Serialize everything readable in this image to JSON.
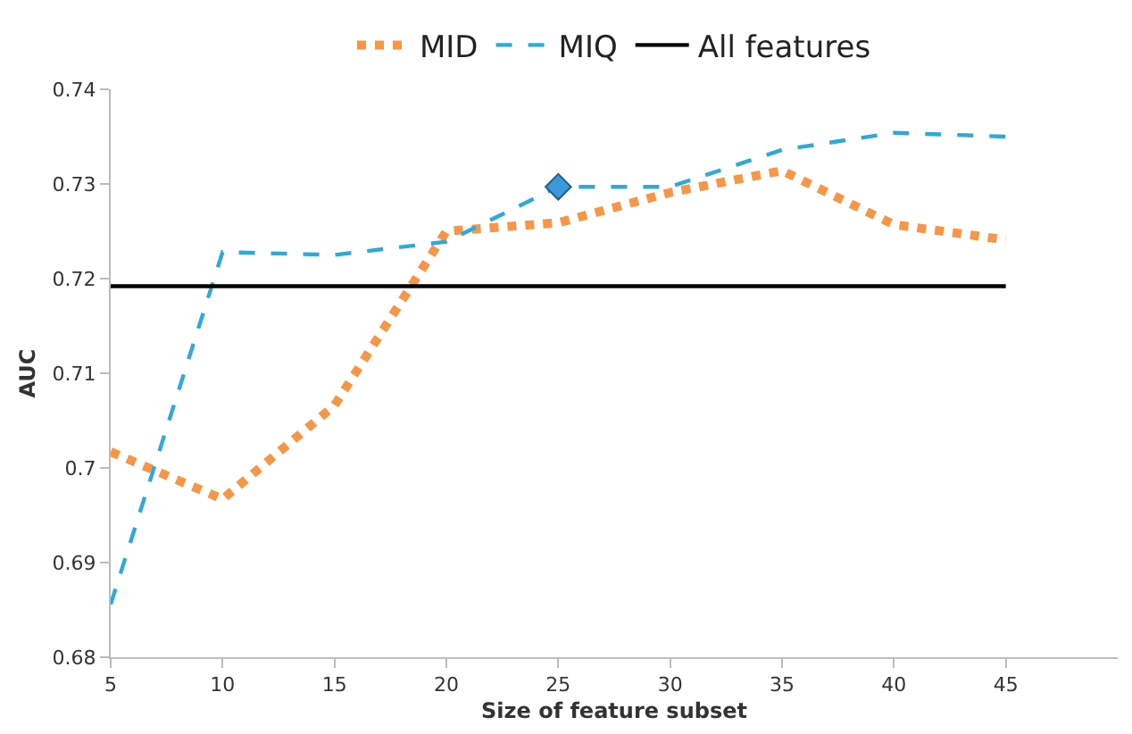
{
  "chart_data": {
    "type": "line",
    "xlabel": "Size of feature subset",
    "ylabel": "AUC",
    "x": [
      5,
      10,
      15,
      20,
      25,
      30,
      35,
      40,
      45
    ],
    "xlim": [
      5,
      50
    ],
    "xticks": [
      5,
      10,
      15,
      20,
      25,
      30,
      35,
      40,
      45
    ],
    "ylim": [
      0.68,
      0.74
    ],
    "yticks": [
      0.68,
      0.69,
      0.7,
      0.71,
      0.72,
      0.73,
      0.74
    ],
    "legend": "top",
    "marker": "none",
    "series": [
      {
        "name": "MID",
        "color": "#f79646",
        "line_style": "dotted",
        "values": [
          0.7017,
          0.6967,
          0.7066,
          0.725,
          0.7259,
          0.7291,
          0.7314,
          0.7257,
          0.7241
        ]
      },
      {
        "name": "MIQ",
        "color": "#31a9d6",
        "line_style": "dashed",
        "values": [
          0.6856,
          0.7228,
          0.7225,
          0.7239,
          0.7297,
          0.7297,
          0.7336,
          0.7354,
          0.735
        ]
      },
      {
        "name": "All features",
        "color": "#000000",
        "line_style": "solid",
        "x": [
          5,
          45
        ],
        "values": [
          0.7192,
          0.7192
        ]
      },
      {
        "type": "scatter",
        "color": "#3a9ad9",
        "marker": "diamond",
        "x": [
          25
        ],
        "values": [
          0.7297
        ]
      }
    ]
  }
}
